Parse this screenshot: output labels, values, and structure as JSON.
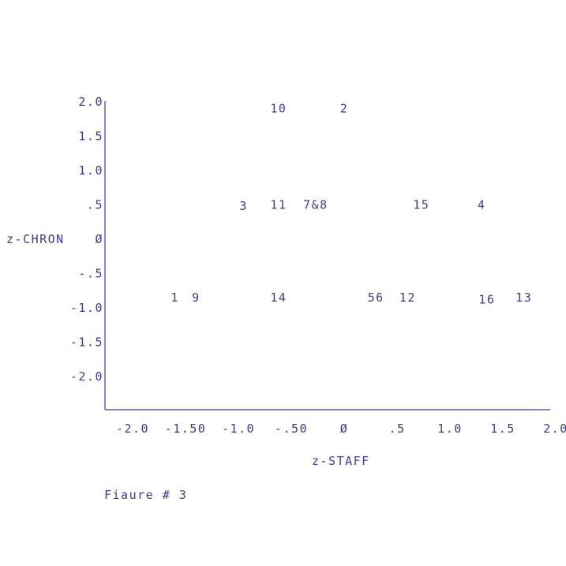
{
  "chart_data": {
    "type": "scatter",
    "xlabel": "z-STAFF",
    "ylabel": "z-CHRON",
    "caption": "Fiaure # 3",
    "xlim": [
      -2.0,
      2.0
    ],
    "ylim": [
      -2.5,
      2.0
    ],
    "grid": false,
    "x_ticks": [
      {
        "value": -2.0,
        "label": "-2.0"
      },
      {
        "value": -1.5,
        "label": "-1.50"
      },
      {
        "value": -1.0,
        "label": "-1.0"
      },
      {
        "value": -0.5,
        "label": "-.50"
      },
      {
        "value": 0.0,
        "label": "Ø"
      },
      {
        "value": 0.5,
        "label": ".5"
      },
      {
        "value": 1.0,
        "label": "1.0"
      },
      {
        "value": 1.5,
        "label": "1.5"
      },
      {
        "value": 2.0,
        "label": "2.0"
      }
    ],
    "y_ticks": [
      {
        "value": 2.0,
        "label": "2.0"
      },
      {
        "value": 1.5,
        "label": "1.5"
      },
      {
        "value": 1.0,
        "label": "1.0"
      },
      {
        "value": 0.5,
        "label": ".5"
      },
      {
        "value": 0.0,
        "label": "Ø"
      },
      {
        "value": -0.5,
        "label": "-.5"
      },
      {
        "value": -1.0,
        "label": "-1.0"
      },
      {
        "value": -1.5,
        "label": "-1.5"
      },
      {
        "value": -2.0,
        "label": "-2.0"
      }
    ],
    "points": [
      {
        "label": "10",
        "x": -0.62,
        "y": 1.9
      },
      {
        "label": "2",
        "x": 0.0,
        "y": 1.9
      },
      {
        "label": "3",
        "x": -0.95,
        "y": 0.48
      },
      {
        "label": "11",
        "x": -0.62,
        "y": 0.5
      },
      {
        "label": "7&8",
        "x": -0.27,
        "y": 0.5
      },
      {
        "label": "15",
        "x": 0.73,
        "y": 0.5
      },
      {
        "label": "4",
        "x": 1.3,
        "y": 0.5
      },
      {
        "label": "1",
        "x": -1.6,
        "y": -0.85
      },
      {
        "label": "9",
        "x": -1.4,
        "y": -0.85
      },
      {
        "label": "14",
        "x": -0.62,
        "y": -0.85
      },
      {
        "label": "56",
        "x": 0.3,
        "y": -0.85
      },
      {
        "label": "12",
        "x": 0.6,
        "y": -0.85
      },
      {
        "label": "16",
        "x": 1.35,
        "y": -0.88
      },
      {
        "label": "13",
        "x": 1.7,
        "y": -0.85
      }
    ]
  }
}
